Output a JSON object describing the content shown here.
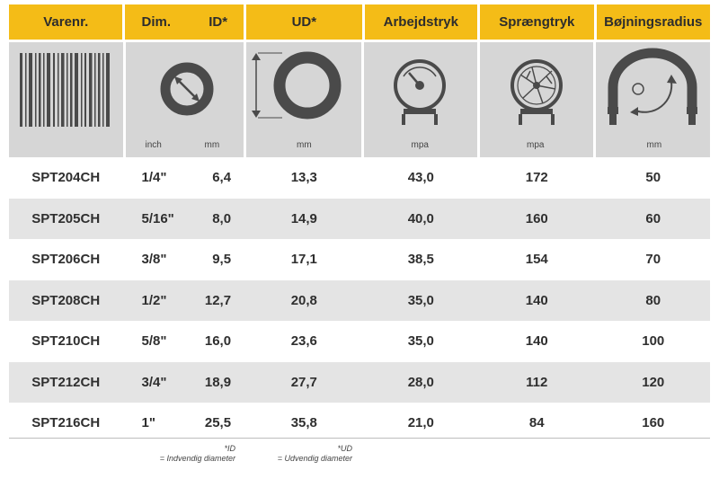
{
  "headers": {
    "varenr": "Varenr.",
    "dim": "Dim.",
    "id": "ID*",
    "ud": "UD*",
    "arbejdstryk": "Arbejdstryk",
    "spraengtryk": "Sprængtryk",
    "bojningsradius": "Bøjningsradius"
  },
  "units": {
    "inch": "inch",
    "id_mm": "mm",
    "ud_mm": "mm",
    "arbejdstryk": "mpa",
    "spraengtryk": "mpa",
    "bojningsradius": "mm"
  },
  "icons": {
    "varenr": "barcode-icon",
    "id": "inner-diameter-icon",
    "ud": "outer-diameter-icon",
    "arbejdstryk": "pressure-gauge-icon",
    "spraengtryk": "burst-gauge-icon",
    "bojningsradius": "bend-radius-icon"
  },
  "colors": {
    "header": "#f4bc17",
    "icon_bg": "#d6d6d6",
    "row_shade": "#e4e4e4",
    "icon_dark": "#4a4a4a"
  },
  "rows": [
    {
      "varenr": "SPT204CH",
      "dim": "1/4\"",
      "id": "6,4",
      "ud": "13,3",
      "arbejdstryk": "43,0",
      "spraengtryk": "172",
      "bojningsradius": "50"
    },
    {
      "varenr": "SPT205CH",
      "dim": "5/16\"",
      "id": "8,0",
      "ud": "14,9",
      "arbejdstryk": "40,0",
      "spraengtryk": "160",
      "bojningsradius": "60"
    },
    {
      "varenr": "SPT206CH",
      "dim": "3/8\"",
      "id": "9,5",
      "ud": "17,1",
      "arbejdstryk": "38,5",
      "spraengtryk": "154",
      "bojningsradius": "70"
    },
    {
      "varenr": "SPT208CH",
      "dim": "1/2\"",
      "id": "12,7",
      "ud": "20,8",
      "arbejdstryk": "35,0",
      "spraengtryk": "140",
      "bojningsradius": "80"
    },
    {
      "varenr": "SPT210CH",
      "dim": "5/8\"",
      "id": "16,0",
      "ud": "23,6",
      "arbejdstryk": "35,0",
      "spraengtryk": "140",
      "bojningsradius": "100"
    },
    {
      "varenr": "SPT212CH",
      "dim": "3/4\"",
      "id": "18,9",
      "ud": "27,7",
      "arbejdstryk": "28,0",
      "spraengtryk": "112",
      "bojningsradius": "120"
    },
    {
      "varenr": "SPT216CH",
      "dim": "1\"",
      "id": "25,5",
      "ud": "35,8",
      "arbejdstryk": "21,0",
      "spraengtryk": "84",
      "bojningsradius": "160"
    }
  ],
  "footnotes": {
    "id_mark": "*ID",
    "id_text": "= Indvendig diameter",
    "ud_mark": "*UD",
    "ud_text": "= Udvendig diameter"
  }
}
